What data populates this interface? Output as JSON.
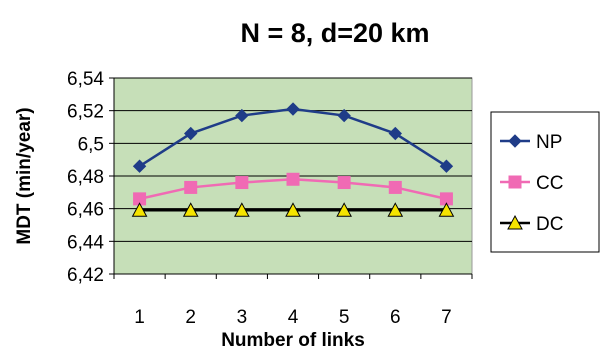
{
  "chart_data": {
    "type": "line",
    "title": "N = 8,  d=20 km",
    "xlabel": "Number of links",
    "ylabel": "MDT (min/year)",
    "x": [
      1,
      2,
      3,
      4,
      5,
      6,
      7
    ],
    "x_tick_labels": [
      "1",
      "2",
      "3",
      "4",
      "5",
      "6",
      "7"
    ],
    "ylim": [
      6.42,
      6.54
    ],
    "y_tick_values": [
      6.42,
      6.44,
      6.46,
      6.48,
      6.5,
      6.52,
      6.54
    ],
    "y_tick_labels": [
      "6,42",
      "6,44",
      "6,46",
      "6,48",
      "6,5",
      "6,52",
      "6,54"
    ],
    "grid": true,
    "plot_background": "#c6dfb8",
    "legend_position": "right",
    "series": [
      {
        "name": "NP",
        "values": [
          6.486,
          6.506,
          6.517,
          6.521,
          6.517,
          6.506,
          6.486
        ],
        "color": "#1f3c88",
        "marker": "diamond",
        "marker_color": "#1f3c88"
      },
      {
        "name": "CC",
        "values": [
          6.466,
          6.473,
          6.476,
          6.478,
          6.476,
          6.473,
          6.466
        ],
        "color": "#f06ab4",
        "marker": "square",
        "marker_color": "#f06ab4"
      },
      {
        "name": "DC",
        "values": [
          6.459,
          6.459,
          6.459,
          6.459,
          6.459,
          6.459,
          6.459
        ],
        "color": "#000000",
        "marker": "triangle",
        "marker_color": "#f5e400"
      }
    ]
  }
}
